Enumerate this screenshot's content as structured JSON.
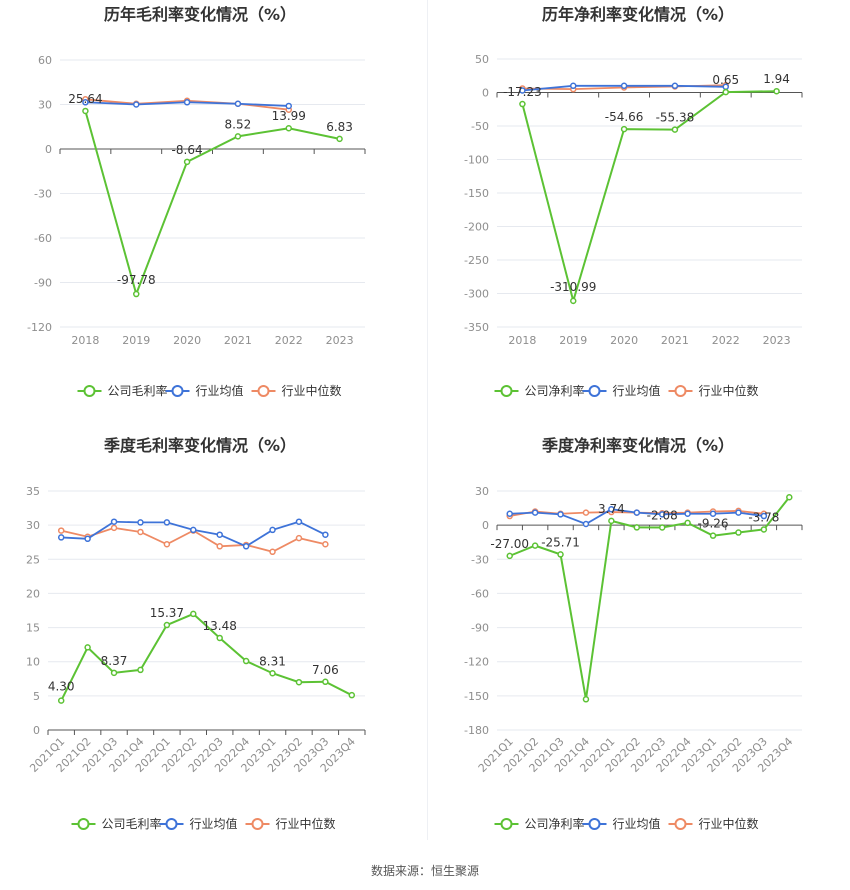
{
  "colors": {
    "company": "#5cc234",
    "industry_avg": "#3e73d8",
    "industry_median": "#ee8a64",
    "grid": "#e6e9ef",
    "axis": "#555555",
    "tick": "#8e8e8e"
  },
  "legend": {
    "gross_label": "公司毛利率",
    "net_label": "公司净利率",
    "avg_label": "行业均值",
    "median_label": "行业中位数"
  },
  "source_text": "数据来源：恒生聚源",
  "chart_data": [
    {
      "type": "line",
      "title": "历年毛利率变化情况（%）",
      "categories": [
        "2018",
        "2019",
        "2020",
        "2021",
        "2022",
        "2023"
      ],
      "ylim": [
        -120,
        60
      ],
      "yticks": [
        60,
        30,
        0,
        -30,
        -60,
        -90,
        -120
      ],
      "grid": true,
      "legend_position": "bottom",
      "series": [
        {
          "name": "公司毛利率",
          "role": "company",
          "values": [
            25.64,
            -97.78,
            -8.64,
            8.52,
            13.99,
            6.83
          ]
        },
        {
          "name": "行业均值",
          "role": "avg",
          "values": [
            31.5,
            30.0,
            31.5,
            30.5,
            29.0,
            null
          ]
        },
        {
          "name": "行业中位数",
          "role": "median",
          "values": [
            33.5,
            30.5,
            32.5,
            30.5,
            26.5,
            null
          ]
        }
      ],
      "data_labels": [
        {
          "index": 0,
          "text": "25.64"
        },
        {
          "index": 1,
          "text": "-97.78"
        },
        {
          "index": 2,
          "text": "-8.64"
        },
        {
          "index": 3,
          "text": "8.52"
        },
        {
          "index": 4,
          "text": "13.99"
        },
        {
          "index": 5,
          "text": "6.83"
        }
      ]
    },
    {
      "type": "line",
      "title": "历年净利率变化情况（%）",
      "categories": [
        "2018",
        "2019",
        "2020",
        "2021",
        "2022",
        "2023"
      ],
      "ylim": [
        -350,
        50
      ],
      "yticks": [
        50,
        0,
        -50,
        -100,
        -150,
        -200,
        -250,
        -300,
        -350
      ],
      "grid": true,
      "legend_position": "bottom",
      "series": [
        {
          "name": "公司净利率",
          "role": "company",
          "values": [
            -17.23,
            -310.99,
            -54.66,
            -55.38,
            0.65,
            1.94
          ]
        },
        {
          "name": "行业均值",
          "role": "avg",
          "values": [
            3.0,
            10.0,
            10.0,
            10.0,
            8.5,
            null
          ]
        },
        {
          "name": "行业中位数",
          "role": "median",
          "values": [
            6.0,
            5.0,
            7.5,
            9.0,
            11.0,
            null
          ]
        }
      ],
      "data_labels": [
        {
          "index": 0,
          "text": "-17.23"
        },
        {
          "index": 1,
          "text": "-310.99"
        },
        {
          "index": 2,
          "text": "-54.66"
        },
        {
          "index": 3,
          "text": "-55.38"
        },
        {
          "index": 4,
          "text": "0.65"
        },
        {
          "index": 5,
          "text": "1.94"
        }
      ]
    },
    {
      "type": "line",
      "title": "季度毛利率变化情况（%）",
      "categories": [
        "2021Q1",
        "2021Q2",
        "2021Q3",
        "2021Q4",
        "2022Q1",
        "2022Q2",
        "2022Q3",
        "2022Q4",
        "2023Q1",
        "2023Q2",
        "2023Q3",
        "2023Q4"
      ],
      "ylim": [
        0,
        35
      ],
      "yticks": [
        35,
        30,
        25,
        20,
        15,
        10,
        5,
        0
      ],
      "grid": true,
      "legend_position": "bottom",
      "series": [
        {
          "name": "公司毛利率",
          "role": "company",
          "values": [
            4.3,
            12.1,
            8.37,
            8.8,
            15.37,
            17.0,
            13.48,
            10.1,
            8.31,
            7.0,
            7.06,
            5.1
          ]
        },
        {
          "name": "行业均值",
          "role": "avg",
          "values": [
            28.2,
            28.0,
            30.5,
            30.4,
            30.4,
            29.3,
            28.6,
            26.9,
            29.3,
            30.5,
            28.6,
            null
          ]
        },
        {
          "name": "行业中位数",
          "role": "median",
          "values": [
            29.2,
            28.3,
            29.6,
            29.0,
            27.2,
            29.2,
            26.9,
            27.1,
            26.1,
            28.1,
            27.2,
            null
          ]
        }
      ],
      "data_labels": [
        {
          "index": 0,
          "text": "4.30"
        },
        {
          "index": 2,
          "text": "8.37"
        },
        {
          "index": 4,
          "text": "15.37"
        },
        {
          "index": 6,
          "text": "13.48"
        },
        {
          "index": 8,
          "text": "8.31"
        },
        {
          "index": 10,
          "text": "7.06"
        }
      ]
    },
    {
      "type": "line",
      "title": "季度净利率变化情况（%）",
      "categories": [
        "2021Q1",
        "2021Q2",
        "2021Q3",
        "2021Q4",
        "2022Q1",
        "2022Q2",
        "2022Q3",
        "2022Q4",
        "2023Q1",
        "2023Q2",
        "2023Q3",
        "2023Q4"
      ],
      "ylim": [
        -180,
        30
      ],
      "yticks": [
        30,
        0,
        -30,
        -60,
        -90,
        -120,
        -150,
        -180
      ],
      "grid": true,
      "legend_position": "bottom",
      "series": [
        {
          "name": "公司净利率",
          "role": "company",
          "values": [
            -27.0,
            -18.0,
            -25.71,
            -153.0,
            3.74,
            -2.0,
            -2.08,
            2.0,
            -9.26,
            -6.5,
            -3.78,
            24.5
          ]
        },
        {
          "name": "行业均值",
          "role": "avg",
          "values": [
            10.0,
            11.0,
            9.5,
            1.0,
            14.0,
            11.0,
            9.5,
            10.0,
            10.0,
            11.0,
            8.0,
            null
          ]
        },
        {
          "name": "行业中位数",
          "role": "median",
          "values": [
            8.0,
            12.0,
            10.0,
            11.0,
            11.5,
            11.0,
            10.5,
            11.0,
            12.0,
            12.5,
            10.0,
            null
          ]
        }
      ],
      "data_labels": [
        {
          "index": 0,
          "text": "-27.00"
        },
        {
          "index": 2,
          "text": "-25.71"
        },
        {
          "index": 4,
          "text": "3.74"
        },
        {
          "index": 6,
          "text": "-2.08"
        },
        {
          "index": 8,
          "text": "-9.26"
        },
        {
          "index": 10,
          "text": "-3.78"
        }
      ]
    }
  ]
}
